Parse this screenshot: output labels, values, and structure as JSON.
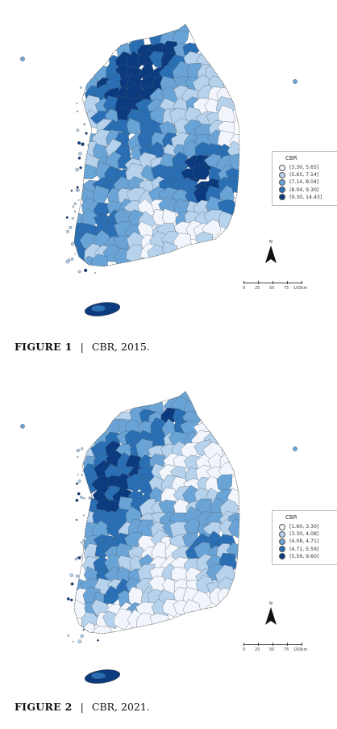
{
  "palette": [
    "#f2f6fc",
    "#b7d2ec",
    "#6aa4d6",
    "#2a6fb4",
    "#0b3b7e"
  ],
  "figures": [
    {
      "id": "fig1",
      "caption": {
        "label": "FIGURE 1",
        "separator": "|",
        "text": "CBR, 2015."
      },
      "legend": {
        "title": "CBR",
        "classes": [
          "[3.30, 5.65]",
          "(5.65, 7.14]",
          "(7.14, 8.04]",
          "(8.04, 9.30]",
          "(9.30, 14.43]"
        ]
      },
      "north": "N",
      "scale": {
        "ticks": [
          "0",
          "25",
          "50",
          "75",
          "100km"
        ]
      }
    },
    {
      "id": "fig2",
      "caption": {
        "label": "FIGURE 2",
        "separator": "|",
        "text": "CBR, 2021."
      },
      "legend": {
        "title": "CBR",
        "classes": [
          "[1.60, 3.30]",
          "(3.30, 4.08]",
          "(4.08, 4.71]",
          "(4.71, 5.59]",
          "(5.59, 9.60]"
        ]
      },
      "north": "N",
      "scale": {
        "ticks": [
          "0",
          "25",
          "50",
          "75",
          "100km"
        ]
      }
    }
  ]
}
